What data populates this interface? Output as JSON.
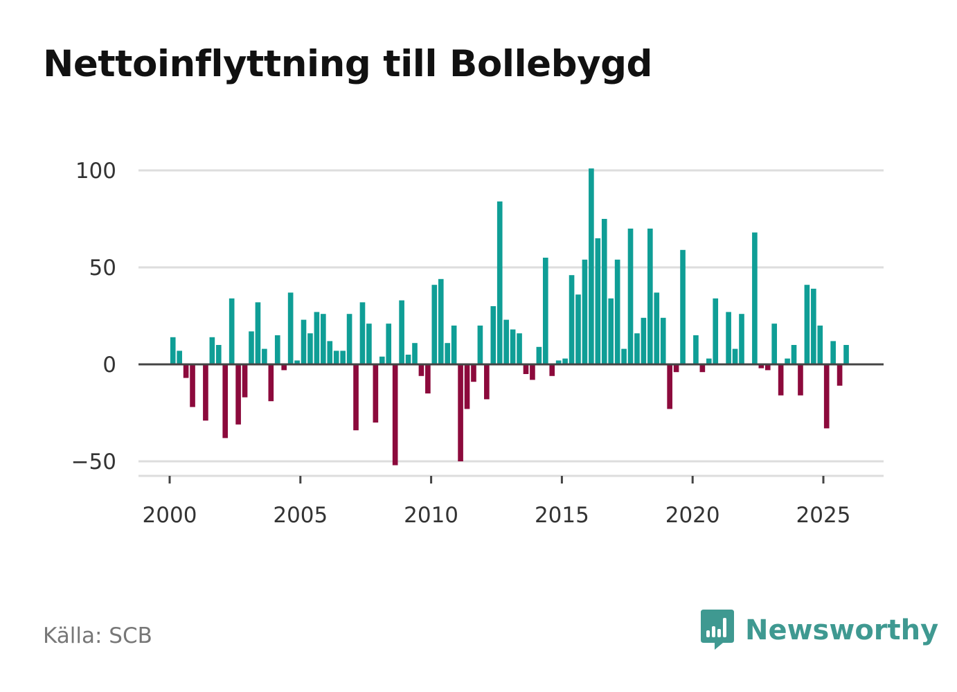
{
  "title": "Nettoinflyttning till Bollebygd",
  "source": "Källa: SCB",
  "brand": {
    "name": "Newsworthy",
    "icon": "newsworthy-logo-icon"
  },
  "colors": {
    "positive": "#0f9e96",
    "negative": "#8c0a3c",
    "grid": "#dddddd",
    "zero": "#444444",
    "text": "#333333",
    "brand": "#3f9991"
  },
  "chart_data": {
    "type": "bar",
    "title": "Nettoinflyttning till Bollebygd",
    "xlabel": "",
    "ylabel": "",
    "ylim": [
      -58,
      103
    ],
    "xlim": [
      1998.7,
      2027.4
    ],
    "grid": true,
    "yticks": [
      -50,
      0,
      50,
      100
    ],
    "ytick_labels": [
      "−50",
      "0",
      "50",
      "100"
    ],
    "xticks": [
      2000,
      2005,
      2010,
      2015,
      2020,
      2025
    ],
    "xtick_labels": [
      "2000",
      "2005",
      "2010",
      "2015",
      "2020",
      "2025"
    ],
    "x": [
      2000.125,
      2000.375,
      2000.625,
      2000.875,
      2001.125,
      2001.375,
      2001.625,
      2001.875,
      2002.125,
      2002.375,
      2002.625,
      2002.875,
      2003.125,
      2003.375,
      2003.625,
      2003.875,
      2004.125,
      2004.375,
      2004.625,
      2004.875,
      2005.125,
      2005.375,
      2005.625,
      2005.875,
      2006.125,
      2006.375,
      2006.625,
      2006.875,
      2007.125,
      2007.375,
      2007.625,
      2007.875,
      2008.125,
      2008.375,
      2008.625,
      2008.875,
      2009.125,
      2009.375,
      2009.625,
      2009.875,
      2010.125,
      2010.375,
      2010.625,
      2010.875,
      2011.125,
      2011.375,
      2011.625,
      2011.875,
      2012.125,
      2012.375,
      2012.625,
      2012.875,
      2013.125,
      2013.375,
      2013.625,
      2013.875,
      2014.125,
      2014.375,
      2014.625,
      2014.875,
      2015.125,
      2015.375,
      2015.625,
      2015.875,
      2016.125,
      2016.375,
      2016.625,
      2016.875,
      2017.125,
      2017.375,
      2017.625,
      2017.875,
      2018.125,
      2018.375,
      2018.625,
      2018.875,
      2019.125,
      2019.375,
      2019.625,
      2019.875,
      2020.125,
      2020.375,
      2020.625,
      2020.875,
      2021.125,
      2021.375,
      2021.625,
      2021.875,
      2022.125,
      2022.375,
      2022.625,
      2022.875,
      2023.125,
      2023.375,
      2023.625,
      2023.875,
      2024.125,
      2024.375,
      2024.625,
      2024.875,
      2025.125,
      2025.375,
      2025.625,
      2025.875
    ],
    "series": [
      {
        "name": "Nettoinflyttning",
        "values": [
          14,
          7,
          -7,
          -22,
          0,
          -29,
          14,
          10,
          -38,
          34,
          -31,
          -17,
          17,
          32,
          8,
          -19,
          15,
          -3,
          37,
          2,
          23,
          16,
          27,
          26,
          12,
          7,
          7,
          26,
          -34,
          32,
          21,
          -30,
          4,
          21,
          -52,
          33,
          5,
          11,
          -6,
          -15,
          41,
          44,
          11,
          20,
          -50,
          -23,
          -9,
          20,
          -18,
          30,
          84,
          23,
          18,
          16,
          -5,
          -8,
          9,
          55,
          -6,
          2,
          3,
          46,
          36,
          54,
          101,
          65,
          75,
          34,
          54,
          8,
          70,
          16,
          24,
          70,
          37,
          24,
          -23,
          -4,
          59,
          0,
          15,
          -4,
          3,
          34,
          0,
          27,
          8,
          26,
          0,
          68,
          -2,
          -3,
          21,
          -16,
          3,
          10,
          -16,
          41,
          39,
          20,
          -33,
          12,
          -11,
          10
        ]
      }
    ]
  }
}
